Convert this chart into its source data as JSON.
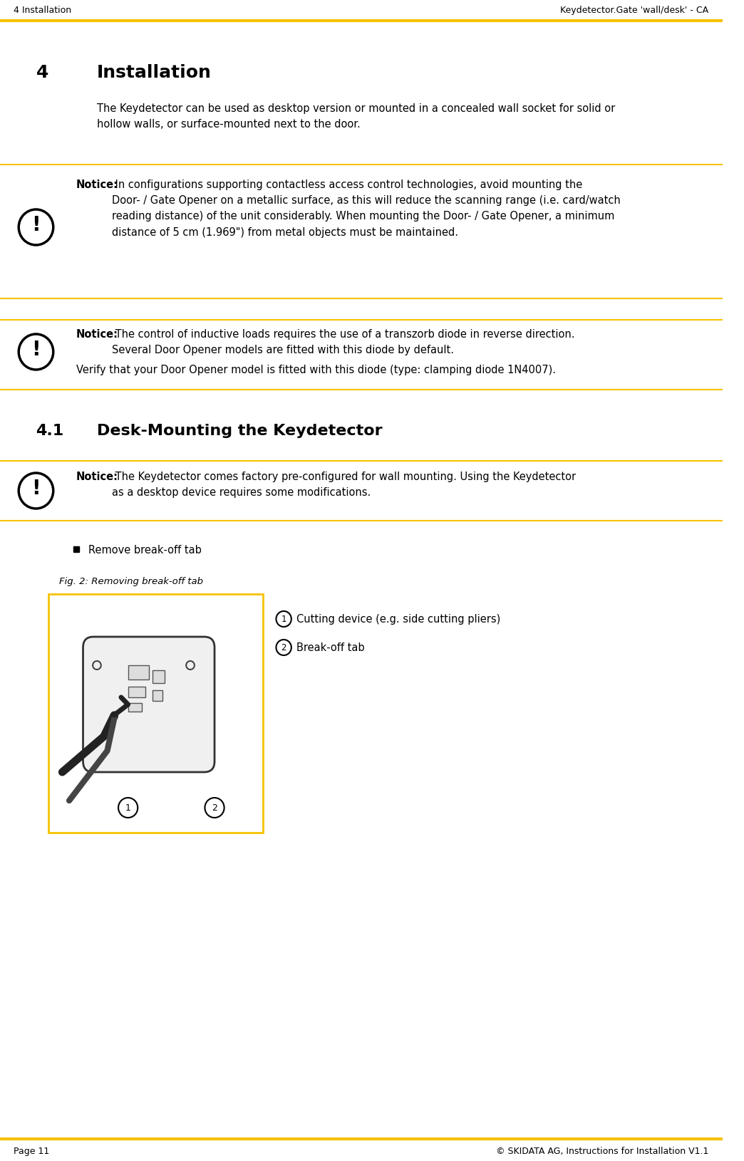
{
  "header_left": "4 Installation",
  "header_right": "Keydetector.Gate 'wall/desk' - CA",
  "header_line_color": "#F5C200",
  "footer_left": "Page 11",
  "footer_right": "© SKIDATA AG, Instructions for Installation V1.1",
  "footer_line_color": "#F5C200",
  "bg_color": "#FFFFFF",
  "section_title_num": "4",
  "section_title_text": "Installation",
  "section_body": "The Keydetector can be used as desktop version or mounted in a concealed wall socket for solid or\nhollow walls, or surface-mounted next to the door.",
  "notice1_bold": "Notice:",
  "notice1_text": " In configurations supporting contactless access control technologies, avoid mounting the\nDoor- / Gate Opener on a metallic surface, as this will reduce the scanning range (i.e. card/watch\nreading distance) of the unit considerably. When mounting the Door- / Gate Opener, a minimum\ndistance of 5 cm (1.969\") from metal objects must be maintained.",
  "notice2_bold": "Notice:",
  "notice2_text": " The control of inductive loads requires the use of a transzorb diode in reverse direction.\nSeveral Door Opener models are fitted with this diode by default.",
  "notice2_line2": "Verify that your Door Opener model is fitted with this diode (type: clamping diode 1N4007).",
  "subsection_num": "4.1",
  "subsection_title": "Desk-Mounting the Keydetector",
  "notice3_bold": "Notice:",
  "notice3_text": " The Keydetector comes factory pre-configured for wall mounting. Using the Keydetector\nas a desktop device requires some modifications.",
  "bullet_text": "Remove break-off tab",
  "fig_caption": "Fig. 2: Removing break-off tab",
  "fig_label1": "Cutting device (e.g. side cutting pliers)",
  "fig_label2": "Break-off tab",
  "notice_line_color": "#F5C200",
  "text_color": "#000000"
}
